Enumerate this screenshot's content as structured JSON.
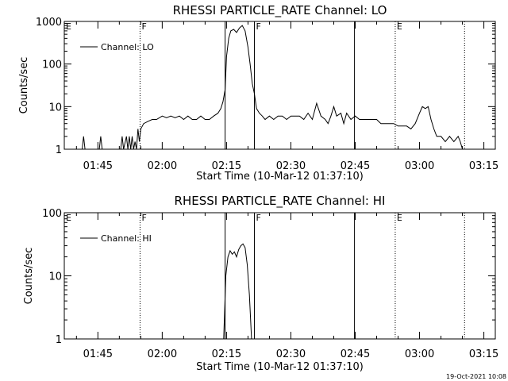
{
  "footer_date": "19-Oct-2021 10:08",
  "colors": {
    "background": "#ffffff",
    "foreground": "#000000"
  },
  "chart_data": [
    {
      "type": "line",
      "title": "RHESSI PARTICLE_RATE Channel: LO",
      "xlabel": "Start Time (10-Mar-12 01:37:10)",
      "ylabel": "Counts/sec",
      "yscale": "log",
      "ylim": [
        1,
        1000
      ],
      "xlim": [
        "01:37:10",
        "03:17:40"
      ],
      "xticks": [
        "01:45",
        "02:00",
        "02:15",
        "02:30",
        "02:45",
        "03:00",
        "03:15"
      ],
      "yticks": [
        "1",
        "10",
        "100",
        "1000"
      ],
      "legend": {
        "position": "top-left",
        "label": "Channel: LO"
      },
      "markers": [
        {
          "time": "01:54:50",
          "style": "dotted",
          "label": "F"
        },
        {
          "time": "02:14:40",
          "style": "solid",
          "label": ""
        },
        {
          "time": "02:21:30",
          "style": "solid",
          "label": "F"
        },
        {
          "time": "02:44:50",
          "style": "solid",
          "label": ""
        },
        {
          "time": "02:54:20",
          "style": "dotted",
          "label": "E"
        },
        {
          "time": "03:10:30",
          "style": "dotted",
          "label": ""
        }
      ],
      "edge_labels": [
        {
          "label": "E",
          "side": "left"
        }
      ],
      "series": [
        {
          "name": "Channel: LO",
          "x": [
            "01:41:20",
            "01:41:40",
            "01:42:00",
            "01:45:20",
            "01:45:40",
            "01:46:00",
            "01:50:20",
            "01:50:40",
            "01:51:00",
            "01:51:40",
            "01:52:00",
            "01:52:20",
            "01:52:40",
            "01:53:00",
            "01:53:20",
            "01:53:40",
            "01:54:00",
            "01:54:20",
            "01:54:40",
            "01:55:00",
            "01:55:40",
            "01:56:40",
            "01:57:40",
            "01:58:40",
            "02:00:00",
            "02:01:00",
            "02:02:00",
            "02:03:00",
            "02:04:00",
            "02:05:00",
            "02:06:00",
            "02:07:00",
            "02:08:00",
            "02:09:00",
            "02:10:00",
            "02:11:00",
            "02:12:00",
            "02:13:00",
            "02:13:40",
            "02:14:10",
            "02:14:40",
            "02:15:00",
            "02:15:30",
            "02:16:00",
            "02:16:40",
            "02:17:20",
            "02:18:00",
            "02:18:40",
            "02:19:20",
            "02:20:00",
            "02:20:30",
            "02:21:00",
            "02:21:30",
            "02:22:00",
            "02:22:40",
            "02:23:20",
            "02:24:00",
            "02:25:00",
            "02:26:00",
            "02:27:00",
            "02:28:00",
            "02:29:00",
            "02:30:00",
            "02:31:00",
            "02:32:00",
            "02:33:00",
            "02:34:00",
            "02:35:00",
            "02:36:00",
            "02:37:00",
            "02:38:00",
            "02:38:40",
            "02:39:20",
            "02:40:00",
            "02:40:40",
            "02:41:40",
            "02:42:20",
            "02:43:00",
            "02:44:00",
            "02:45:00",
            "02:46:00",
            "02:47:00",
            "02:48:00",
            "02:49:00",
            "02:50:00",
            "02:51:00",
            "02:52:00",
            "02:53:00",
            "02:54:00",
            "02:55:00",
            "02:56:00",
            "02:57:00",
            "02:58:00",
            "02:59:00",
            "03:00:00",
            "03:00:40",
            "03:01:20",
            "03:02:00",
            "03:02:40",
            "03:03:20",
            "03:04:00",
            "03:05:00",
            "03:06:00",
            "03:07:00",
            "03:08:00",
            "03:09:00",
            "03:09:30",
            "03:10:00",
            "03:10:30"
          ],
          "y": [
            1,
            2,
            1,
            1,
            2,
            1,
            1,
            2,
            1,
            2,
            1,
            2,
            1,
            2,
            1,
            1.5,
            1,
            3,
            1.5,
            3,
            4,
            4.5,
            5,
            5,
            6,
            5.5,
            6,
            5.5,
            6,
            5,
            6,
            5,
            5,
            6,
            5,
            5,
            6,
            7,
            9,
            13,
            25,
            150,
            400,
            600,
            650,
            550,
            700,
            800,
            600,
            250,
            100,
            35,
            20,
            9,
            7,
            6,
            5,
            6,
            5,
            6,
            6,
            5,
            6,
            6,
            6,
            5,
            7,
            5,
            12,
            6,
            5,
            4,
            6,
            10,
            6,
            7,
            4,
            7,
            5,
            6,
            5,
            5,
            5,
            5,
            5,
            4,
            4,
            4,
            4,
            3.5,
            3.5,
            3.5,
            3,
            4,
            7,
            10,
            9,
            10,
            5,
            3,
            2,
            2,
            1.5,
            2,
            1.5,
            2,
            1.5,
            1,
            1
          ]
        }
      ]
    },
    {
      "type": "line",
      "title": "RHESSI PARTICLE_RATE Channel: HI",
      "xlabel": "Start Time (10-Mar-12 01:37:10)",
      "ylabel": "Counts/sec",
      "yscale": "log",
      "ylim": [
        1,
        100
      ],
      "xlim": [
        "01:37:10",
        "03:17:40"
      ],
      "xticks": [
        "01:45",
        "02:00",
        "02:15",
        "02:30",
        "02:45",
        "03:00",
        "03:15"
      ],
      "yticks": [
        "1",
        "10",
        "100"
      ],
      "legend": {
        "position": "top-left",
        "label": "Channel: HI"
      },
      "markers": [
        {
          "time": "01:54:50",
          "style": "dotted",
          "label": "F"
        },
        {
          "time": "02:14:40",
          "style": "solid",
          "label": ""
        },
        {
          "time": "02:21:30",
          "style": "solid",
          "label": "F"
        },
        {
          "time": "02:44:50",
          "style": "solid",
          "label": ""
        },
        {
          "time": "02:54:20",
          "style": "dotted",
          "label": "E"
        },
        {
          "time": "03:10:30",
          "style": "dotted",
          "label": ""
        }
      ],
      "edge_labels": [
        {
          "label": "E",
          "side": "left"
        }
      ],
      "series": [
        {
          "name": "Channel: HI",
          "x": [
            "02:14:20",
            "02:14:50",
            "02:15:20",
            "02:15:50",
            "02:16:20",
            "02:16:50",
            "02:17:20",
            "02:17:50",
            "02:18:20",
            "02:18:50",
            "02:19:20",
            "02:19:50",
            "02:20:20",
            "02:20:50"
          ],
          "y": [
            1,
            10,
            20,
            25,
            22,
            24,
            20,
            26,
            30,
            32,
            28,
            15,
            5,
            1
          ]
        }
      ]
    }
  ]
}
